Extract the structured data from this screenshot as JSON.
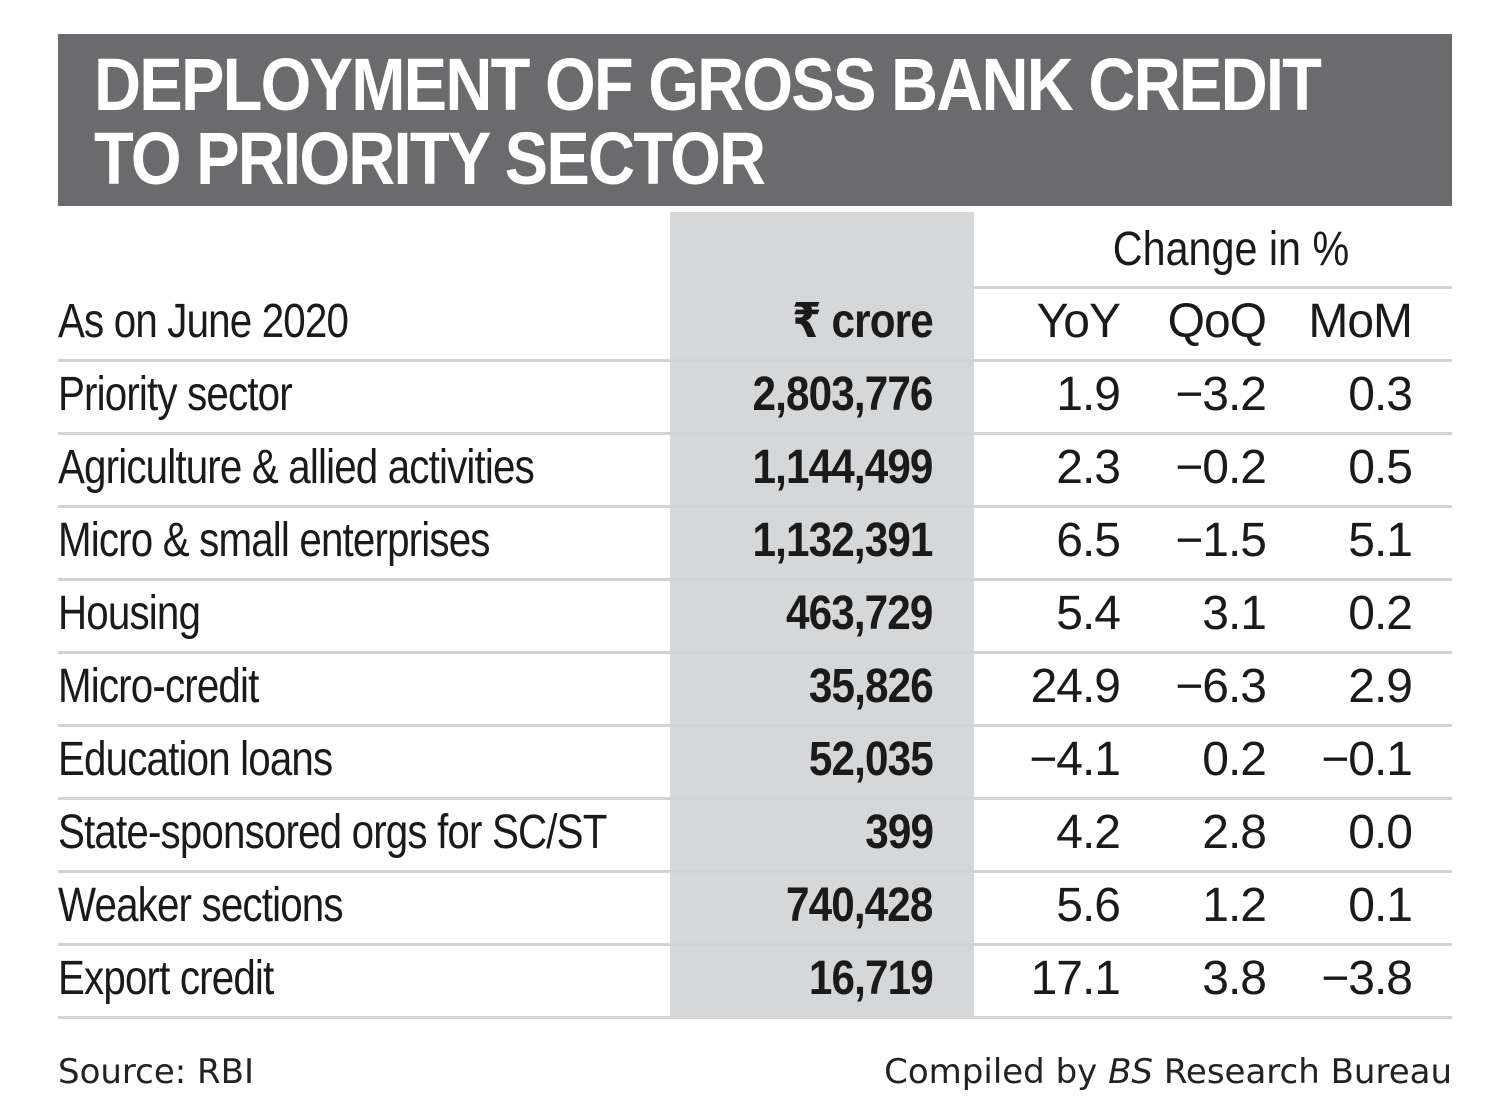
{
  "title_lines": [
    "DEPLOYMENT OF GROSS BANK CREDIT",
    "TO PRIORITY SECTOR"
  ],
  "chart_data": {
    "type": "table",
    "group_header": "Change in %",
    "columns": [
      "As on June 2020",
      "₹ crore",
      "YoY",
      "QoQ",
      "MoM"
    ],
    "rows": [
      [
        "Priority sector",
        "2,803,776",
        "1.9",
        "−3.2",
        "0.3"
      ],
      [
        "Agriculture & allied activities",
        "1,144,499",
        "2.3",
        "−0.2",
        "0.5"
      ],
      [
        "Micro & small enterprises",
        "1,132,391",
        "6.5",
        "−1.5",
        "5.1"
      ],
      [
        "Housing",
        "463,729",
        "5.4",
        "3.1",
        "0.2"
      ],
      [
        "Micro-credit",
        "35,826",
        "24.9",
        "−6.3",
        "2.9"
      ],
      [
        "Education loans",
        "52,035",
        "−4.1",
        "0.2",
        "−0.1"
      ],
      [
        "State-sponsored orgs for SC/ST",
        "399",
        "4.2",
        "2.8",
        "0.0"
      ],
      [
        "Weaker sections",
        "740,428",
        "5.6",
        "1.2",
        "0.1"
      ],
      [
        "Export credit",
        "16,719",
        "17.1",
        "3.8",
        "−3.8"
      ]
    ]
  },
  "footer": {
    "source": "Source: RBI",
    "compiled_prefix": "Compiled by ",
    "compiled_italic": "BS",
    "compiled_suffix": " Research Bureau"
  },
  "colors": {
    "title_bg": "#6b6b6d",
    "shade": "#d6d7d9",
    "rule": "#d2d3d5"
  }
}
